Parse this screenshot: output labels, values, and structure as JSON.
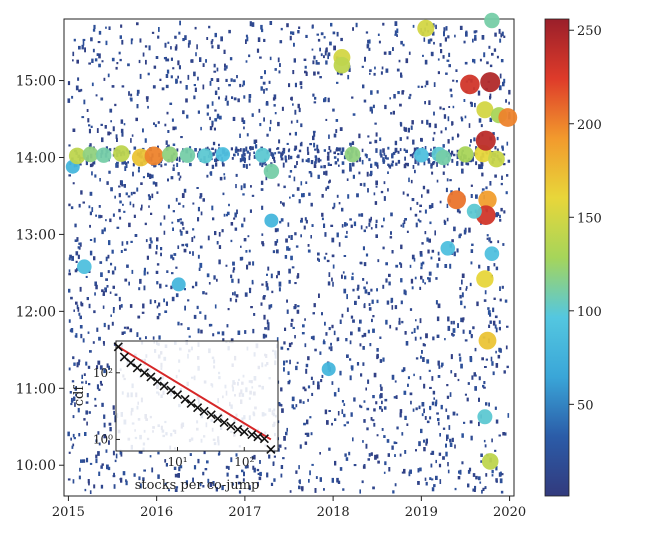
{
  "chart_data": [
    {
      "type": "scatter",
      "x_label": "",
      "y_label": "",
      "x_ticks": [
        2015,
        2016,
        2017,
        2018,
        2019,
        2020
      ],
      "x_tick_labels": [
        "2015",
        "2016",
        "2017",
        "2018",
        "2019",
        "2020"
      ],
      "xlim": [
        2014.95,
        2020.05
      ],
      "y_ticks": [
        10,
        11,
        12,
        13,
        14,
        15
      ],
      "y_tick_labels": [
        "10:00",
        "11:00",
        "12:00",
        "13:00",
        "14:00",
        "15:00"
      ],
      "ylim": [
        9.6,
        15.8
      ],
      "color_scale": "jet",
      "colorbar": {
        "range": [
          1,
          256
        ],
        "ticks": [
          50,
          100,
          150,
          200,
          250
        ],
        "tick_labels": [
          "50",
          "100",
          "150",
          "200",
          "250"
        ],
        "stops": [
          "#323a7d",
          "#2b5ca8",
          "#3aa6d8",
          "#54c7e0",
          "#a6d55a",
          "#e8d63a",
          "#f29a2d",
          "#de3b2a",
          "#9a1f2a"
        ]
      },
      "highlight_points": [
        {
          "x": 2015.05,
          "y": 13.88,
          "size": 80
        },
        {
          "x": 2015.1,
          "y": 14.02,
          "size": 140
        },
        {
          "x": 2015.25,
          "y": 14.04,
          "size": 120
        },
        {
          "x": 2015.4,
          "y": 14.03,
          "size": 110
        },
        {
          "x": 2015.6,
          "y": 14.05,
          "size": 140
        },
        {
          "x": 2015.82,
          "y": 14.0,
          "size": 170
        },
        {
          "x": 2015.97,
          "y": 14.02,
          "size": 200
        },
        {
          "x": 2016.15,
          "y": 14.04,
          "size": 120
        },
        {
          "x": 2016.35,
          "y": 14.03,
          "size": 110
        },
        {
          "x": 2016.55,
          "y": 14.02,
          "size": 100
        },
        {
          "x": 2016.75,
          "y": 14.04,
          "size": 90
        },
        {
          "x": 2017.2,
          "y": 14.03,
          "size": 100
        },
        {
          "x": 2017.3,
          "y": 13.82,
          "size": 110
        },
        {
          "x": 2018.22,
          "y": 14.04,
          "size": 120
        },
        {
          "x": 2018.1,
          "y": 15.3,
          "size": 150
        },
        {
          "x": 2018.1,
          "y": 15.2,
          "size": 140
        },
        {
          "x": 2019.05,
          "y": 15.68,
          "size": 150
        },
        {
          "x": 2019.0,
          "y": 14.03,
          "size": 90
        },
        {
          "x": 2019.2,
          "y": 14.04,
          "size": 100
        },
        {
          "x": 2019.25,
          "y": 14.0,
          "size": 110
        },
        {
          "x": 2019.5,
          "y": 14.04,
          "size": 130
        },
        {
          "x": 2019.7,
          "y": 14.05,
          "size": 160
        },
        {
          "x": 2019.85,
          "y": 13.98,
          "size": 145
        },
        {
          "x": 2019.55,
          "y": 14.95,
          "size": 230
        },
        {
          "x": 2019.78,
          "y": 14.98,
          "size": 245
        },
        {
          "x": 2019.72,
          "y": 14.62,
          "size": 150
        },
        {
          "x": 2019.88,
          "y": 14.55,
          "size": 130
        },
        {
          "x": 2019.98,
          "y": 14.52,
          "size": 200
        },
        {
          "x": 2019.73,
          "y": 14.22,
          "size": 240
        },
        {
          "x": 2019.4,
          "y": 13.45,
          "size": 205
        },
        {
          "x": 2019.75,
          "y": 13.45,
          "size": 190
        },
        {
          "x": 2019.73,
          "y": 13.25,
          "size": 230
        },
        {
          "x": 2019.6,
          "y": 13.3,
          "size": 100
        },
        {
          "x": 2019.3,
          "y": 12.82,
          "size": 90
        },
        {
          "x": 2019.72,
          "y": 12.42,
          "size": 160
        },
        {
          "x": 2019.75,
          "y": 11.62,
          "size": 170
        },
        {
          "x": 2019.78,
          "y": 10.05,
          "size": 140
        },
        {
          "x": 2019.72,
          "y": 10.63,
          "size": 100
        },
        {
          "x": 2019.8,
          "y": 15.78,
          "size": 110
        },
        {
          "x": 2015.18,
          "y": 12.58,
          "size": 90
        },
        {
          "x": 2016.25,
          "y": 12.35,
          "size": 80
        },
        {
          "x": 2017.3,
          "y": 13.18,
          "size": 80
        },
        {
          "x": 2017.95,
          "y": 11.25,
          "size": 80
        },
        {
          "x": 2019.8,
          "y": 12.75,
          "size": 90
        }
      ]
    },
    {
      "type": "scatter",
      "inset": true,
      "x_label": "stocks per co-jump",
      "y_label": "cdf",
      "x_scale": "log",
      "y_scale": "log",
      "x_ticks": [
        10,
        100
      ],
      "x_tick_labels": [
        "10¹",
        "10²"
      ],
      "y_ticks": [
        1,
        100
      ],
      "y_tick_labels": [
        "10⁰",
        "10²"
      ],
      "series": [
        {
          "marker": "x",
          "x": [
            1.3,
            1.6,
            2.0,
            2.5,
            3.2,
            4.0,
            5.0,
            6.3,
            8.0,
            10,
            13,
            16,
            20,
            25,
            32,
            40,
            50,
            63,
            80,
            100,
            130,
            160,
            200,
            250
          ],
          "y": [
            600,
            300,
            200,
            140,
            100,
            75,
            55,
            40,
            30,
            22,
            16,
            12,
            9,
            7,
            5.5,
            4.2,
            3.2,
            2.5,
            2.0,
            1.7,
            1.4,
            1.2,
            1.05,
            0.5
          ]
        }
      ],
      "fit_line": {
        "color": "#d62728",
        "x_range": [
          1.3,
          250
        ],
        "y_range": [
          600,
          1.0
        ]
      }
    }
  ]
}
